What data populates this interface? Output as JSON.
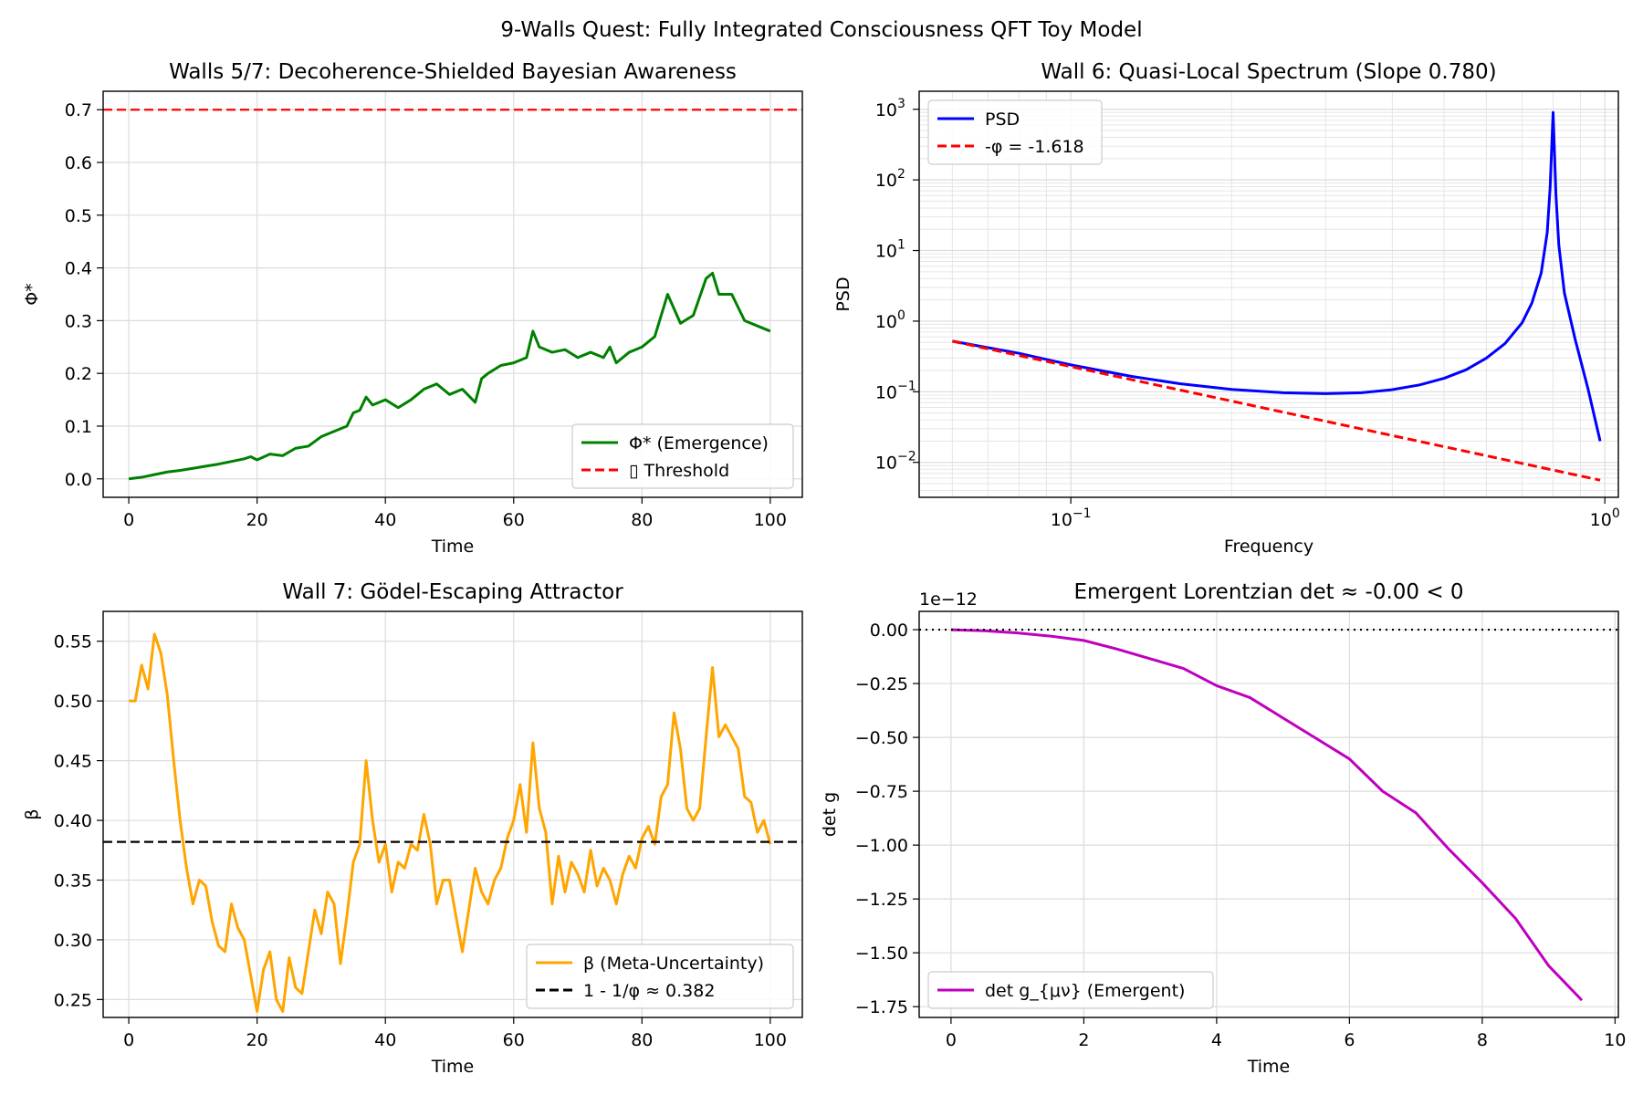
{
  "figure": {
    "title": "9-Walls Quest: Fully Integrated Consciousness QFT Toy Model"
  },
  "colors": {
    "green": "#008000",
    "red": "#ff0000",
    "blue": "#0000ff",
    "orange": "#ffa500",
    "black": "#000000",
    "magenta": "#bf00bf"
  },
  "chart_data": [
    {
      "id": "phi",
      "type": "line",
      "title": "Walls 5/7: Decoherence-Shielded Bayesian Awareness",
      "xlabel": "Time",
      "ylabel": "Φ*",
      "xlim": [
        -4,
        105
      ],
      "ylim": [
        -0.035,
        0.735
      ],
      "xscale": "linear",
      "yscale": "linear",
      "xticks": [
        0,
        20,
        40,
        60,
        80,
        100
      ],
      "xtick_labels": [
        "0",
        "20",
        "40",
        "60",
        "80",
        "100"
      ],
      "yticks": [
        0.0,
        0.1,
        0.2,
        0.3,
        0.4,
        0.5,
        0.6,
        0.7
      ],
      "ytick_labels": [
        "0.0",
        "0.1",
        "0.2",
        "0.3",
        "0.4",
        "0.5",
        "0.6",
        "0.7"
      ],
      "grid": true,
      "legend_position": "lower-right",
      "series": [
        {
          "name": "Φ* (Emergence)",
          "color": "#008000",
          "dash": "solid",
          "x": [
            0,
            2,
            4,
            6,
            8,
            10,
            12,
            14,
            16,
            18,
            19,
            20,
            22,
            24,
            26,
            28,
            30,
            32,
            34,
            35,
            36,
            37,
            38,
            40,
            42,
            44,
            46,
            48,
            50,
            52,
            54,
            55,
            56,
            58,
            60,
            62,
            63,
            64,
            66,
            68,
            70,
            72,
            74,
            75,
            76,
            78,
            80,
            82,
            84,
            86,
            88,
            90,
            91,
            92,
            94,
            96,
            98,
            100
          ],
          "y": [
            0.0,
            0.003,
            0.008,
            0.013,
            0.016,
            0.02,
            0.024,
            0.028,
            0.033,
            0.038,
            0.042,
            0.036,
            0.047,
            0.044,
            0.058,
            0.062,
            0.08,
            0.09,
            0.1,
            0.125,
            0.13,
            0.155,
            0.14,
            0.15,
            0.135,
            0.15,
            0.17,
            0.18,
            0.16,
            0.17,
            0.145,
            0.19,
            0.2,
            0.215,
            0.22,
            0.23,
            0.28,
            0.25,
            0.24,
            0.245,
            0.23,
            0.24,
            0.23,
            0.25,
            0.22,
            0.24,
            0.25,
            0.27,
            0.35,
            0.295,
            0.31,
            0.38,
            0.39,
            0.35,
            0.35,
            0.3,
            0.29,
            0.28
          ]
        },
        {
          "name": "▯ Threshold",
          "color": "#ff0000",
          "dash": "dashed",
          "hline": 0.7
        }
      ]
    },
    {
      "id": "psd",
      "type": "line",
      "title": "Wall 6: Quasi-Local Spectrum (Slope 0.780)",
      "xlabel": "Frequency",
      "ylabel": "PSD",
      "xlim": [
        0.052,
        1.06
      ],
      "ylim": [
        0.0032,
        1800
      ],
      "xscale": "log",
      "yscale": "log",
      "xticks": [
        0.1,
        1.0
      ],
      "xtick_labels": [
        "10",
        "10"
      ],
      "xtick_exps": [
        "−1",
        "0"
      ],
      "yticks": [
        0.01,
        0.1,
        1,
        10,
        100,
        1000
      ],
      "ytick_labels": [
        "10",
        "10",
        "10",
        "10",
        "10",
        "10"
      ],
      "ytick_exps": [
        "−2",
        "−1",
        "0",
        "1",
        "2",
        "3"
      ],
      "grid": true,
      "legend_position": "upper-left",
      "series": [
        {
          "name": "PSD",
          "color": "#0000ff",
          "dash": "solid",
          "x": [
            0.06,
            0.08,
            0.1,
            0.13,
            0.16,
            0.2,
            0.25,
            0.3,
            0.35,
            0.4,
            0.45,
            0.5,
            0.55,
            0.6,
            0.65,
            0.7,
            0.73,
            0.76,
            0.78,
            0.79,
            0.8,
            0.81,
            0.82,
            0.84,
            0.88,
            0.93,
            0.98
          ],
          "y": [
            0.52,
            0.35,
            0.24,
            0.165,
            0.13,
            0.108,
            0.097,
            0.094,
            0.097,
            0.107,
            0.125,
            0.155,
            0.205,
            0.3,
            0.48,
            0.95,
            1.8,
            4.8,
            18,
            80,
            900,
            60,
            12,
            2.5,
            0.55,
            0.11,
            0.02
          ]
        },
        {
          "name": "-φ = -1.618",
          "color": "#ff0000",
          "dash": "dashed",
          "x": [
            0.06,
            0.98
          ],
          "y": [
            0.52,
            0.0056
          ]
        }
      ]
    },
    {
      "id": "beta",
      "type": "line",
      "title": "Wall 7: Gödel-Escaping Attractor",
      "xlabel": "Time",
      "ylabel": "β",
      "xlim": [
        -4,
        105
      ],
      "ylim": [
        0.235,
        0.575
      ],
      "xscale": "linear",
      "yscale": "linear",
      "xticks": [
        0,
        20,
        40,
        60,
        80,
        100
      ],
      "xtick_labels": [
        "0",
        "20",
        "40",
        "60",
        "80",
        "100"
      ],
      "yticks": [
        0.25,
        0.3,
        0.35,
        0.4,
        0.45,
        0.5,
        0.55
      ],
      "ytick_labels": [
        "0.25",
        "0.30",
        "0.35",
        "0.40",
        "0.45",
        "0.50",
        "0.55"
      ],
      "grid": true,
      "legend_position": "lower-right",
      "series": [
        {
          "name": "β (Meta-Uncertainty)",
          "color": "#ffa500",
          "dash": "solid",
          "x": [
            0,
            1,
            2,
            3,
            4,
            5,
            6,
            7,
            8,
            9,
            10,
            11,
            12,
            13,
            14,
            15,
            16,
            17,
            18,
            19,
            20,
            21,
            22,
            23,
            24,
            25,
            26,
            27,
            28,
            29,
            30,
            31,
            32,
            33,
            34,
            35,
            36,
            37,
            38,
            39,
            40,
            41,
            42,
            43,
            44,
            45,
            46,
            47,
            48,
            49,
            50,
            52,
            54,
            55,
            56,
            57,
            58,
            59,
            60,
            61,
            62,
            63,
            64,
            65,
            66,
            67,
            68,
            69,
            70,
            71,
            72,
            73,
            74,
            75,
            76,
            77,
            78,
            79,
            80,
            81,
            82,
            83,
            84,
            85,
            86,
            87,
            88,
            89,
            90,
            91,
            92,
            93,
            94,
            95,
            96,
            97,
            98,
            99,
            100
          ],
          "y": [
            0.5,
            0.5,
            0.53,
            0.51,
            0.556,
            0.54,
            0.505,
            0.45,
            0.4,
            0.36,
            0.33,
            0.35,
            0.345,
            0.315,
            0.295,
            0.29,
            0.33,
            0.31,
            0.3,
            0.27,
            0.24,
            0.275,
            0.29,
            0.25,
            0.24,
            0.285,
            0.26,
            0.255,
            0.29,
            0.325,
            0.305,
            0.34,
            0.33,
            0.28,
            0.32,
            0.365,
            0.38,
            0.45,
            0.4,
            0.365,
            0.38,
            0.34,
            0.365,
            0.36,
            0.38,
            0.375,
            0.405,
            0.38,
            0.33,
            0.35,
            0.35,
            0.29,
            0.36,
            0.34,
            0.33,
            0.35,
            0.36,
            0.385,
            0.4,
            0.43,
            0.39,
            0.465,
            0.41,
            0.39,
            0.33,
            0.37,
            0.34,
            0.365,
            0.355,
            0.34,
            0.375,
            0.345,
            0.36,
            0.35,
            0.33,
            0.355,
            0.37,
            0.36,
            0.385,
            0.395,
            0.38,
            0.42,
            0.43,
            0.49,
            0.46,
            0.41,
            0.4,
            0.41,
            0.47,
            0.528,
            0.47,
            0.48,
            0.47,
            0.46,
            0.42,
            0.415,
            0.39,
            0.4,
            0.38
          ]
        },
        {
          "name": "1 - 1/φ ≈ 0.382",
          "color": "#000000",
          "dash": "dashed",
          "hline": 0.382
        }
      ]
    },
    {
      "id": "det",
      "type": "line",
      "title": "Emergent Lorentzian det ≈ -0.00 < 0",
      "xlabel": "Time",
      "ylabel": "det g",
      "offset_label": "1e−12",
      "xlim": [
        -0.48,
        10.05
      ],
      "ylim": [
        -1.8,
        0.085
      ],
      "xscale": "linear",
      "yscale": "linear",
      "xticks": [
        0,
        2,
        4,
        6,
        8,
        10
      ],
      "xtick_labels": [
        "0",
        "2",
        "4",
        "6",
        "8",
        "10"
      ],
      "yticks": [
        0.0,
        -0.25,
        -0.5,
        -0.75,
        -1.0,
        -1.25,
        -1.5,
        -1.75
      ],
      "ytick_labels": [
        "0.00",
        "−0.25",
        "−0.50",
        "−0.75",
        "−1.00",
        "−1.25",
        "−1.50",
        "−1.75"
      ],
      "grid": true,
      "legend_position": "lower-left",
      "series": [
        {
          "name": "det g_{μν} (Emergent)",
          "color": "#bf00bf",
          "dash": "solid",
          "x": [
            0,
            0.5,
            1,
            1.5,
            2,
            2.5,
            3,
            3.5,
            4,
            4.5,
            5,
            5.5,
            6,
            6.5,
            7,
            7.5,
            8,
            8.5,
            9,
            9.5
          ],
          "y": [
            0.0,
            -0.005,
            -0.015,
            -0.03,
            -0.05,
            -0.09,
            -0.135,
            -0.18,
            -0.26,
            -0.315,
            -0.41,
            -0.505,
            -0.6,
            -0.75,
            -0.85,
            -1.02,
            -1.175,
            -1.34,
            -1.56,
            -1.72
          ]
        },
        {
          "name": "",
          "color": "#000000",
          "dash": "dotted",
          "hline": 0.0,
          "legend": false
        }
      ]
    }
  ]
}
